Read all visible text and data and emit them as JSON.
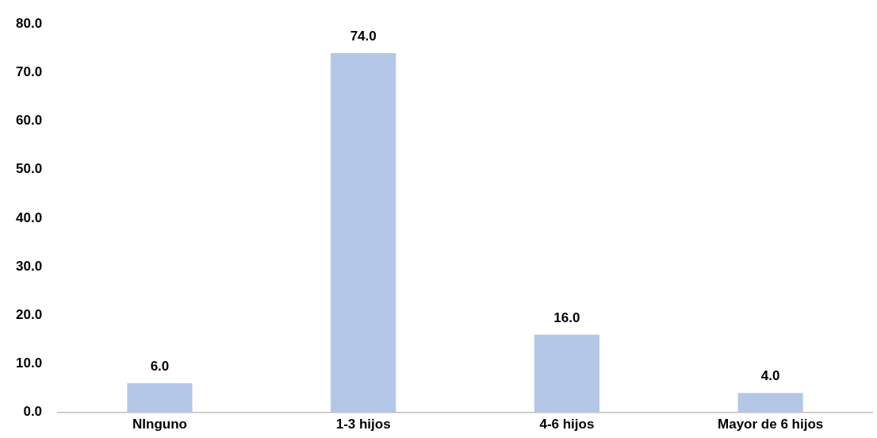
{
  "chart_data": {
    "type": "bar",
    "categories": [
      "NInguno",
      "1-3 hijos",
      "4-6 hijos",
      "Mayor de 6 hijos"
    ],
    "values": [
      6,
      74,
      16,
      4
    ],
    "color": "#b4c7e7",
    "value_labels": [
      "6.0",
      "74.0",
      "16.0",
      "4.0"
    ],
    "ylim": [
      0,
      80
    ],
    "yticks": [
      {
        "value": 0,
        "label": "0.0"
      },
      {
        "value": 10,
        "label": "10.0"
      },
      {
        "value": 20,
        "label": "20.0"
      },
      {
        "value": 30,
        "label": "30.0"
      },
      {
        "value": 40,
        "label": "40.0"
      },
      {
        "value": 50,
        "label": "50.0"
      },
      {
        "value": 60,
        "label": "60.0"
      },
      {
        "value": 70,
        "label": "70.0"
      },
      {
        "value": 80,
        "label": "80.0"
      }
    ],
    "grid": false,
    "legend": false
  }
}
